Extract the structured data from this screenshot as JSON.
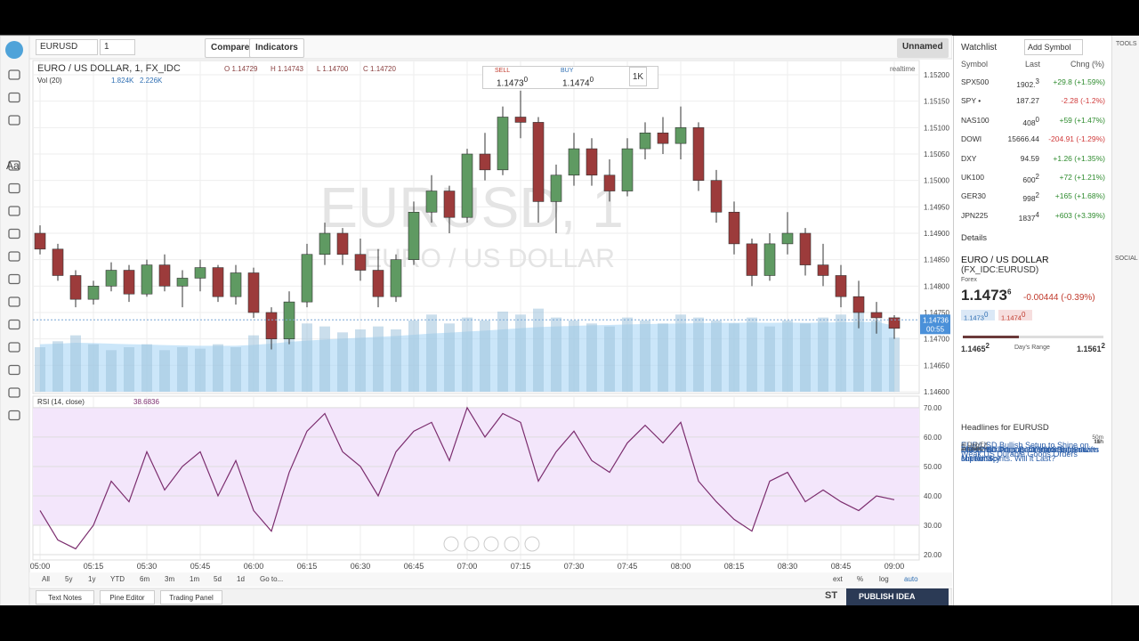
{
  "toolbar": {
    "symbol": "EURUSD",
    "interval": "1",
    "compare": "Compare",
    "indicators": "Indicators",
    "layout": "Unnamed",
    "text_tool": "Aa"
  },
  "chart": {
    "title": "EURO / US DOLLAR, 1, FX_IDC",
    "ohlc": [
      [
        "O",
        "1.14729"
      ],
      [
        "H",
        "1.14743"
      ],
      [
        "L",
        "1.14700"
      ],
      [
        "C",
        "1.14720"
      ]
    ],
    "realtime": "realtime",
    "watermark": "EURUSD, 1",
    "watermark_sub": "EURO / US DOLLAR",
    "sell": {
      "label": "SELL",
      "price": "1.1473",
      "pip": "0"
    },
    "buy": {
      "label": "BUY",
      "price": "1.1474",
      "pip": "0"
    },
    "qty": "1K",
    "up_color": "#5f9a62",
    "down_color": "#9c3b3b",
    "ylim": [
      1.146,
      1.15227
    ],
    "yticks": [
      {
        "value": 1.152,
        "label": "1.15200"
      },
      {
        "value": 1.1515,
        "label": "1.15150"
      },
      {
        "value": 1.151,
        "label": "1.15100"
      },
      {
        "value": 1.1505,
        "label": "1.15050"
      },
      {
        "value": 1.15,
        "label": "1.15000"
      },
      {
        "value": 1.1495,
        "label": "1.14950"
      },
      {
        "value": 1.149,
        "label": "1.14900"
      },
      {
        "value": 1.1485,
        "label": "1.14850"
      },
      {
        "value": 1.148,
        "label": "1.14800"
      },
      {
        "value": 1.1475,
        "label": "1.14750"
      },
      {
        "value": 1.147,
        "label": "1.14700"
      },
      {
        "value": 1.1465,
        "label": "1.14650"
      },
      {
        "value": 1.146,
        "label": "1.14600"
      }
    ],
    "last_price": {
      "value": 1.14736,
      "label": "1.14736",
      "countdown": "00:55"
    },
    "time_labels": [
      "05:00",
      "05:15",
      "05:30",
      "05:45",
      "06:00",
      "06:15",
      "06:30",
      "06:45",
      "07:00",
      "07:15",
      "07:30",
      "07:45",
      "08:00",
      "08:15",
      "08:30",
      "08:45",
      "09:00"
    ],
    "candles": [
      [
        1.149,
        1.14915,
        1.1486,
        1.1487
      ],
      [
        1.1487,
        1.1488,
        1.1481,
        1.1482
      ],
      [
        1.1482,
        1.1483,
        1.1476,
        1.14775
      ],
      [
        1.14775,
        1.1481,
        1.14765,
        1.148
      ],
      [
        1.148,
        1.14845,
        1.1479,
        1.1483
      ],
      [
        1.1483,
        1.1484,
        1.1477,
        1.14785
      ],
      [
        1.14785,
        1.1485,
        1.1478,
        1.1484
      ],
      [
        1.1484,
        1.1486,
        1.1479,
        1.148
      ],
      [
        1.148,
        1.1483,
        1.1476,
        1.14815
      ],
      [
        1.14815,
        1.1485,
        1.1479,
        1.14835
      ],
      [
        1.14835,
        1.1484,
        1.1477,
        1.1478
      ],
      [
        1.1478,
        1.1484,
        1.14765,
        1.14825
      ],
      [
        1.14825,
        1.14835,
        1.1474,
        1.1475
      ],
      [
        1.1475,
        1.1476,
        1.1468,
        1.147
      ],
      [
        1.147,
        1.1479,
        1.1469,
        1.1477
      ],
      [
        1.1477,
        1.1488,
        1.1476,
        1.1486
      ],
      [
        1.1486,
        1.1492,
        1.1484,
        1.149
      ],
      [
        1.149,
        1.1491,
        1.1484,
        1.1486
      ],
      [
        1.1486,
        1.1489,
        1.1481,
        1.1483
      ],
      [
        1.1483,
        1.1487,
        1.1476,
        1.1478
      ],
      [
        1.1478,
        1.1486,
        1.1477,
        1.1485
      ],
      [
        1.1485,
        1.1496,
        1.1484,
        1.1494
      ],
      [
        1.1494,
        1.1501,
        1.1492,
        1.1498
      ],
      [
        1.1498,
        1.1499,
        1.149,
        1.1493
      ],
      [
        1.1493,
        1.1506,
        1.1492,
        1.1505
      ],
      [
        1.1505,
        1.1509,
        1.15,
        1.1502
      ],
      [
        1.1502,
        1.1514,
        1.1501,
        1.1512
      ],
      [
        1.1512,
        1.1517,
        1.1508,
        1.1511
      ],
      [
        1.1511,
        1.1512,
        1.1492,
        1.1496
      ],
      [
        1.1496,
        1.1503,
        1.149,
        1.1501
      ],
      [
        1.1501,
        1.1509,
        1.1499,
        1.1506
      ],
      [
        1.1506,
        1.1508,
        1.1499,
        1.1501
      ],
      [
        1.1501,
        1.1504,
        1.1496,
        1.1498
      ],
      [
        1.1498,
        1.1508,
        1.1497,
        1.1506
      ],
      [
        1.1506,
        1.1511,
        1.1504,
        1.1509
      ],
      [
        1.1509,
        1.1512,
        1.1505,
        1.1507
      ],
      [
        1.1507,
        1.1514,
        1.1504,
        1.151
      ],
      [
        1.151,
        1.1511,
        1.1498,
        1.15
      ],
      [
        1.15,
        1.1502,
        1.1492,
        1.1494
      ],
      [
        1.1494,
        1.1496,
        1.1486,
        1.1488
      ],
      [
        1.1488,
        1.1489,
        1.148,
        1.1482
      ],
      [
        1.1482,
        1.149,
        1.1481,
        1.1488
      ],
      [
        1.1488,
        1.1494,
        1.1486,
        1.149
      ],
      [
        1.149,
        1.1491,
        1.1482,
        1.1484
      ],
      [
        1.1484,
        1.1488,
        1.148,
        1.1482
      ],
      [
        1.1482,
        1.1484,
        1.1476,
        1.1478
      ],
      [
        1.1478,
        1.1481,
        1.1472,
        1.1475
      ],
      [
        1.1475,
        1.1477,
        1.1471,
        1.1474
      ],
      [
        1.1474,
        1.14745,
        1.147,
        1.1472
      ]
    ],
    "volume": {
      "name": "Vol (20)",
      "last_label": "1.824K",
      "ma_label": "2.226K",
      "bar_color": "#9fc3dc",
      "ma_color": "#a9d5f5",
      "ylim": [
        0,
        3000
      ],
      "values": [
        1500,
        1700,
        1900,
        1600,
        1400,
        1500,
        1600,
        1400,
        1500,
        1450,
        1600,
        1500,
        1900,
        2400,
        2500,
        2300,
        2200,
        2000,
        2100,
        2200,
        2100,
        2400,
        2600,
        2300,
        2500,
        2400,
        2700,
        2600,
        2800,
        2500,
        2400,
        2300,
        2200,
        2500,
        2400,
        2300,
        2600,
        2500,
        2400,
        2300,
        2500,
        2200,
        2400,
        2300,
        2500,
        2600,
        2700,
        2400,
        1824
      ],
      "ma": [
        1600,
        1620,
        1650,
        1640,
        1620,
        1600,
        1590,
        1570,
        1560,
        1550,
        1550,
        1550,
        1580,
        1620,
        1680,
        1720,
        1760,
        1790,
        1820,
        1850,
        1880,
        1920,
        1960,
        1990,
        2030,
        2060,
        2100,
        2140,
        2180,
        2200,
        2220,
        2240,
        2250,
        2270,
        2280,
        2290,
        2300,
        2310,
        2320,
        2320,
        2330,
        2320,
        2330,
        2320,
        2330,
        2340,
        2350,
        2350,
        2226
      ]
    },
    "rsi": {
      "title": "RSI (14, close)",
      "color": "#7b2d6e",
      "band_color": "#f3e6fb",
      "band": [
        30,
        70
      ],
      "ylim": [
        18.5,
        73.9
      ],
      "yticks": [
        {
          "value": 70,
          "label": "70.00"
        },
        {
          "value": 60,
          "label": "60.00"
        },
        {
          "value": 50,
          "label": "50.00"
        },
        {
          "value": 40,
          "label": "40.00"
        },
        {
          "value": 30,
          "label": "30.00"
        },
        {
          "value": 20,
          "label": "20.00"
        }
      ],
      "values": [
        35,
        25,
        22,
        30,
        45,
        38,
        55,
        42,
        50,
        55,
        40,
        52,
        35,
        28,
        48,
        62,
        68,
        55,
        50,
        40,
        55,
        62,
        65,
        52,
        70,
        60,
        68,
        65,
        45,
        55,
        62,
        52,
        48,
        58,
        64,
        58,
        65,
        45,
        38,
        32,
        28,
        45,
        48,
        38,
        42,
        38,
        35,
        40,
        38.6836
      ]
    },
    "ranges": [
      "All",
      "5y",
      "1y",
      "YTD",
      "6m",
      "3m",
      "1m",
      "5d",
      "1d",
      "Go to..."
    ],
    "scale_options": [
      "ext",
      "%",
      "log",
      "auto"
    ]
  },
  "bottom_bar": {
    "tabs": [
      "Text Notes",
      "Pine Editor",
      "Trading Panel"
    ],
    "publish": "PUBLISH IDEA",
    "shortcut": "ST"
  },
  "side_icons": {
    "tools": "TOOLS",
    "social": "SOCIAL"
  },
  "watchlist": {
    "title": "Watchlist",
    "add": "Add Symbol",
    "columns": [
      "Symbol",
      "Last",
      "Chng (%)"
    ],
    "rows": [
      {
        "symbol": "SPX500",
        "last": "1902.",
        "sup": "3",
        "change": "+29.8 (+1.59%)",
        "color": "#2e8b2e"
      },
      {
        "symbol": "SPY •",
        "last": "187.27",
        "sup": "",
        "change": "-2.28 (-1.2%)",
        "color": "#d03a3a"
      },
      {
        "symbol": "NAS100",
        "last": "408",
        "sup": "0",
        "change": "+59 (+1.47%)",
        "color": "#2e8b2e"
      },
      {
        "symbol": "DOWI",
        "last": "15666.44",
        "sup": "",
        "change": "-204.91 (-1.29%)",
        "color": "#d03a3a"
      },
      {
        "symbol": "DXY",
        "last": "94.59",
        "sup": "",
        "change": "+1.26 (+1.35%)",
        "color": "#2e8b2e"
      },
      {
        "symbol": "UK100",
        "last": "600",
        "sup": "2",
        "change": "+72 (+1.21%)",
        "color": "#2e8b2e"
      },
      {
        "symbol": "GER30",
        "last": "998",
        "sup": "2",
        "change": "+165 (+1.68%)",
        "color": "#2e8b2e"
      },
      {
        "symbol": "JPN225",
        "last": "1837",
        "sup": "4",
        "change": "+603 (+3.39%)",
        "color": "#2e8b2e"
      }
    ]
  },
  "details": {
    "title": "Details",
    "name": "EURO / US DOLLAR",
    "ticker": "(FX_IDC:EURUSD)",
    "kind": "Forex",
    "price": "1.1473",
    "price_sup": "6",
    "change": "-0.00444 (-0.39%)",
    "bid": "1.1473",
    "bid_sup": "0",
    "ask": "1.1474",
    "ask_sup": "0",
    "low": "1.1465",
    "low_sup": "2",
    "range_label": "Day's Range",
    "high": "1.1561",
    "high_sup": "2"
  },
  "headlines": {
    "title": "Headlines for EURUSD",
    "items": [
      {
        "title": "EUR/USD Bullish Setup to Shine on Weak US Durable Goods Orders",
        "source": "at DailyFX",
        "time": "50m"
      },
      {
        "title": "Euro, Yen Drop as China Stimulus Lifts Market Spirits. Will it Last?",
        "source": "at DailyFX",
        "time": "1h"
      },
      {
        "title": "EUR/USD Pulls Back after Breakout",
        "source": "at DailyFX",
        "time": "11h"
      },
      {
        "title": "Did stocks hit bottom? Your 8-point checklist",
        "source": "at CNBC",
        "time": "15h"
      },
      {
        "title": "The dollar's competition for safe haven supremacy",
        "source": "at CNBC",
        "time": "16h"
      }
    ]
  }
}
